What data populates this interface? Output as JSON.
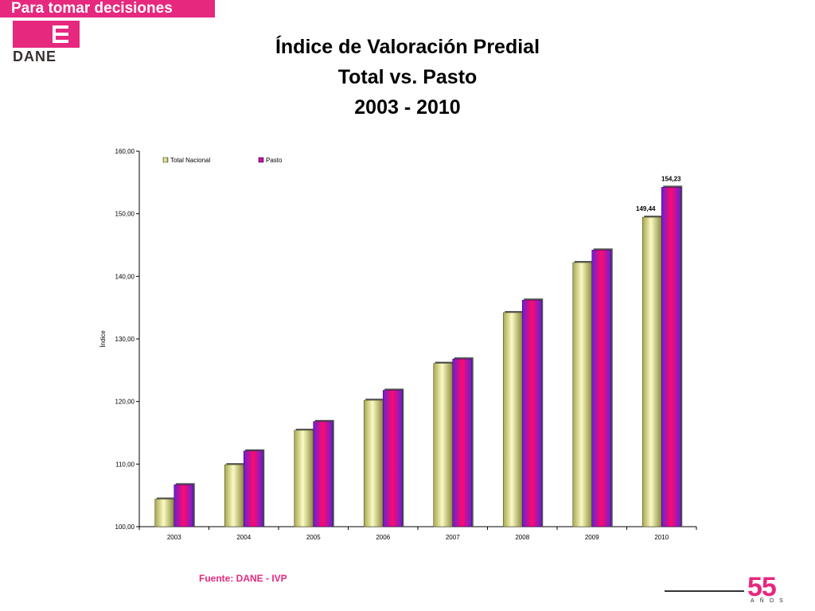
{
  "header": {
    "tagline": "Para tomar decisiones",
    "logo_text": "DANE"
  },
  "title": {
    "line1": "Índice de Valoración Predial",
    "line2": "Total vs. Pasto",
    "line3": "2003 - 2010"
  },
  "footer": {
    "source": "Fuente: DANE - IVP",
    "anniversary_number": "55",
    "anniversary_label": "AÑOS"
  },
  "colors": {
    "brand": "#e6287e",
    "total_nacional": "#eded9a",
    "pasto": "#b01fb0"
  },
  "chart_data": {
    "type": "bar",
    "categories": [
      "2003",
      "2004",
      "2005",
      "2006",
      "2007",
      "2008",
      "2009",
      "2010"
    ],
    "series": [
      {
        "name": "Total Nacional",
        "values": [
          104.4,
          109.9,
          115.4,
          120.2,
          126.1,
          134.2,
          142.2,
          149.44
        ]
      },
      {
        "name": "Pasto",
        "values": [
          106.7,
          112.1,
          116.8,
          121.8,
          126.8,
          136.2,
          144.2,
          154.23
        ]
      }
    ],
    "data_labels": [
      {
        "series": "Total Nacional",
        "category": "2010",
        "text": "149,44"
      },
      {
        "series": "Pasto",
        "category": "2010",
        "text": "154,23"
      }
    ],
    "ylabel": "Índice",
    "xlabel": "",
    "ylim": [
      100,
      160
    ],
    "yticks": [
      "100,00",
      "110,00",
      "120,00",
      "130,00",
      "140,00",
      "150,00",
      "160,00"
    ],
    "grid": false,
    "legend": "top-left"
  }
}
